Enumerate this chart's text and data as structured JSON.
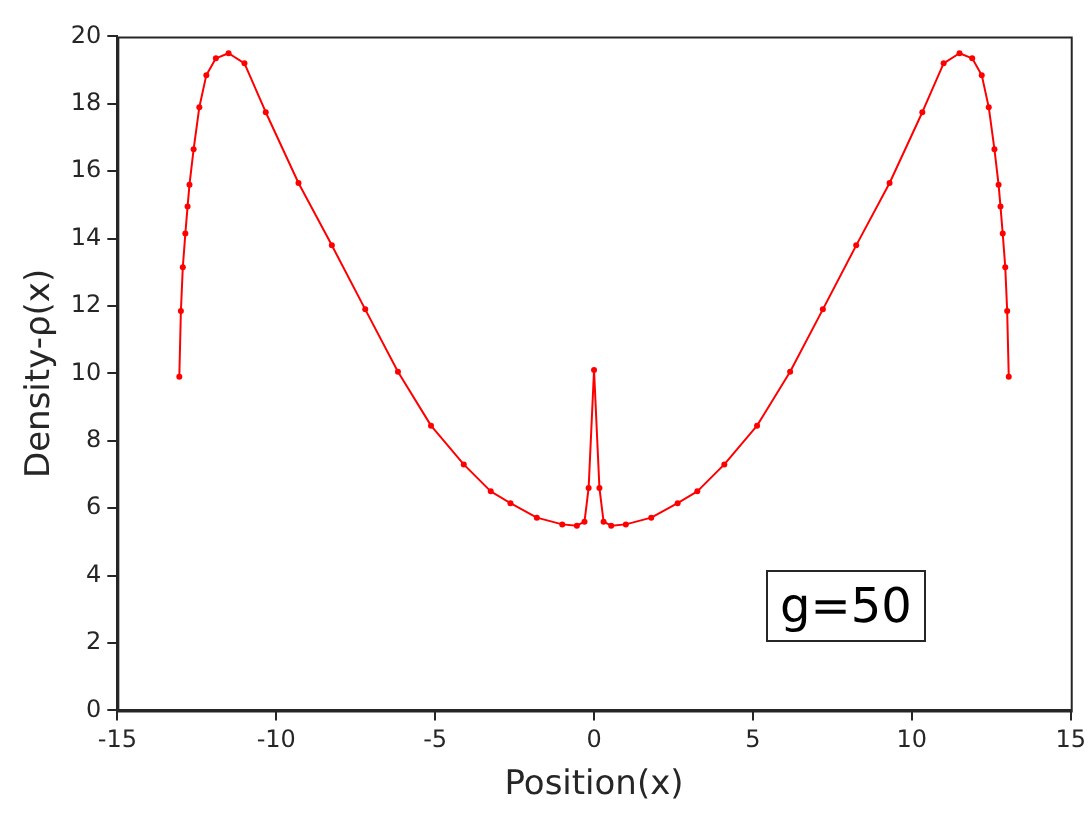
{
  "chart_data": {
    "type": "line",
    "xlabel": "Position(x)",
    "ylabel": "Density-ρ(x)",
    "annotations": [
      "g=50"
    ],
    "xlim": [
      -15,
      15
    ],
    "xticks": [
      -15,
      -10,
      -5,
      0,
      5,
      10,
      15
    ],
    "ylim": [
      0,
      20
    ],
    "yticks": [
      0,
      2,
      4,
      6,
      8,
      10,
      12,
      14,
      16,
      18,
      20
    ],
    "grid": false,
    "legend": false,
    "marker": "circle",
    "line_style": "solid",
    "series": [
      {
        "color": "#ff0000",
        "x": [
          -13.05,
          -13.0,
          -12.94,
          -12.86,
          -12.79,
          -12.73,
          -12.6,
          -12.42,
          -12.2,
          -11.9,
          -11.5,
          -11.0,
          -10.33,
          -9.3,
          -8.25,
          -7.2,
          -6.17,
          -5.13,
          -4.1,
          -3.25,
          -2.63,
          -1.8,
          -1.0,
          -0.54,
          -0.3,
          -0.17,
          0,
          0.17,
          0.3,
          0.54,
          1.0,
          1.8,
          2.63,
          3.25,
          4.1,
          5.13,
          6.17,
          7.2,
          8.25,
          9.3,
          10.33,
          11.0,
          11.5,
          11.9,
          12.2,
          12.42,
          12.6,
          12.73,
          12.79,
          12.86,
          12.94,
          13.0,
          13.05
        ],
        "values": [
          9.9,
          11.85,
          13.15,
          14.15,
          14.95,
          15.6,
          16.65,
          17.9,
          18.85,
          19.35,
          19.5,
          19.2,
          17.75,
          15.65,
          13.8,
          11.9,
          10.05,
          8.45,
          7.3,
          6.5,
          6.15,
          5.72,
          5.52,
          5.48,
          5.6,
          6.6,
          10.1,
          6.6,
          5.6,
          5.48,
          5.52,
          5.72,
          6.15,
          6.5,
          7.3,
          8.45,
          10.05,
          11.9,
          13.8,
          15.65,
          17.75,
          19.2,
          19.5,
          19.35,
          18.85,
          17.9,
          16.65,
          15.6,
          14.95,
          14.15,
          13.15,
          11.85,
          9.9
        ]
      }
    ]
  }
}
